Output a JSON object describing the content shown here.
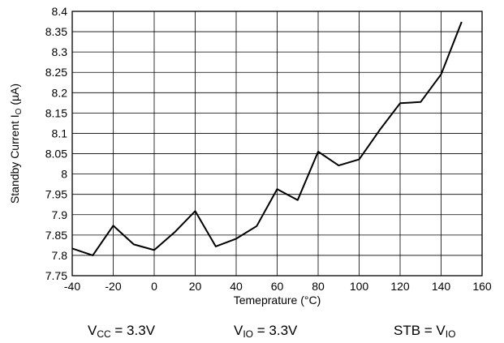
{
  "chart_data": {
    "type": "line",
    "xlabel": "Temeprature (°C)",
    "ylabel": "Standby Current I",
    "ylabel_sub": "O",
    "ylabel_unit": " (µA)",
    "xlim": [
      -40,
      160
    ],
    "ylim": [
      7.75,
      8.4
    ],
    "grid": true,
    "x_ticks": [
      "-40",
      "-20",
      "0",
      "20",
      "40",
      "60",
      "80",
      "100",
      "120",
      "140",
      "160"
    ],
    "y_ticks": [
      "7.75",
      "7.8",
      "7.85",
      "7.9",
      "7.95",
      "8",
      "8.05",
      "8.1",
      "8.15",
      "8.2",
      "8.25",
      "8.3",
      "8.35",
      "8.4"
    ],
    "series": [
      {
        "x": [
          -40,
          -30,
          -20,
          -10,
          0,
          10,
          20,
          30,
          40,
          50,
          60,
          70,
          80,
          90,
          100,
          110,
          120,
          130,
          140,
          150
        ],
        "y": [
          7.817,
          7.8,
          7.873,
          7.827,
          7.813,
          7.857,
          7.909,
          7.822,
          7.841,
          7.872,
          7.963,
          7.936,
          8.055,
          8.021,
          8.036,
          8.108,
          8.174,
          8.177,
          8.245,
          8.374
        ]
      }
    ],
    "color": "#000000"
  },
  "conditions": {
    "vcc": {
      "main": "V",
      "sub": "CC",
      "rest": " = 3.3V"
    },
    "vio": {
      "main": "V",
      "sub": "IO",
      "rest": " = 3.3V"
    },
    "stb": {
      "main": "STB = V",
      "sub": "IO"
    }
  }
}
